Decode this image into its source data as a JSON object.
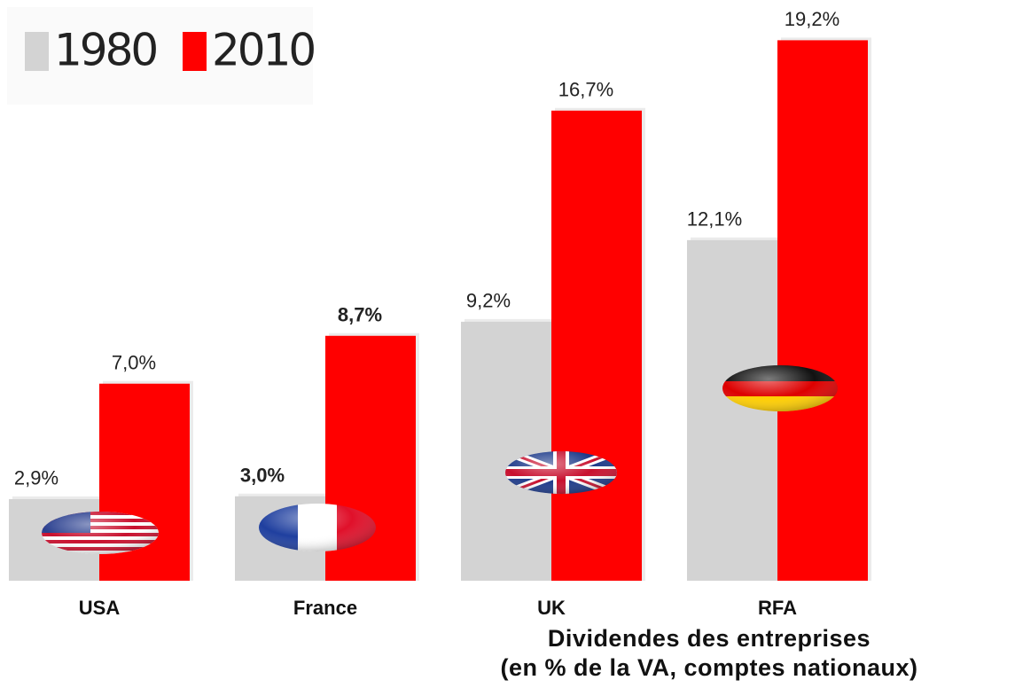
{
  "chart_data": {
    "type": "bar",
    "title": "Dividendes des entreprises",
    "subtitle": "(en % de la VA, comptes nationaux)",
    "categories": [
      "USA",
      "France",
      "UK",
      "RFA"
    ],
    "series": [
      {
        "name": "1980",
        "color": "#d3d3d3",
        "values": [
          2.9,
          3.0,
          9.2,
          12.1
        ],
        "value_labels": [
          "2,9%",
          "3,0%",
          "9,2%",
          "12,1%"
        ]
      },
      {
        "name": "2010",
        "color": "#ff0000",
        "values": [
          7.0,
          8.7,
          16.7,
          19.2
        ],
        "value_labels": [
          "7,0%",
          "8,7%",
          "16,7%",
          "19,2%"
        ]
      }
    ],
    "ylim": [
      0,
      20
    ],
    "legend": "top-left"
  }
}
